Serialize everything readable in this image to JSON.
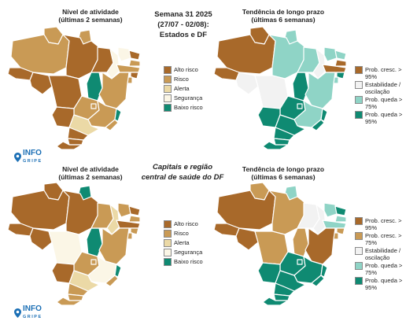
{
  "top": {
    "left_title": [
      "Nível de atividade",
      "(últimas 2 semanas)"
    ],
    "center_title": [
      "Semana 31 2025",
      "(27/07 - 02/08):",
      "Estados e DF"
    ],
    "right_title": [
      "Tendência de longo prazo",
      "(últimas 6 semanas)"
    ]
  },
  "bottom": {
    "left_title": [
      "Nível de atividade",
      "(últimas 2 semanas)"
    ],
    "center_title": [
      "Capitais e região",
      "central de saúde do DF"
    ],
    "right_title": [
      "Tendência de longo prazo",
      "(últimas 6 semanas)"
    ]
  },
  "legend_activity": [
    {
      "label": "Alto risco",
      "color": "#a8692a"
    },
    {
      "label": "Risco",
      "color": "#c99a55"
    },
    {
      "label": "Alerta",
      "color": "#ebd9a6"
    },
    {
      "label": "Segurança",
      "color": "#fbf6e6"
    },
    {
      "label": "Baixo risco",
      "color": "#0f8a72"
    }
  ],
  "legend_trend_top": [
    {
      "label": "Prob. cresc. > 95%",
      "color": "#a8692a"
    },
    {
      "label": "Estabilidade / oscilação",
      "color": "#f2f2f2"
    },
    {
      "label": "Prob. queda > 75%",
      "color": "#8fd4c6"
    },
    {
      "label": "Prob. queda > 95%",
      "color": "#0f8a72"
    }
  ],
  "legend_trend_bottom": [
    {
      "label": "Prob. cresc. > 95%",
      "color": "#a8692a"
    },
    {
      "label": "Prob. cresc. > 75%",
      "color": "#c99a55"
    },
    {
      "label": "Estabilidade / oscilação",
      "color": "#f2f2f2"
    },
    {
      "label": "Prob. queda > 75%",
      "color": "#8fd4c6"
    },
    {
      "label": "Prob. queda > 95%",
      "color": "#0f8a72"
    }
  ],
  "logo": {
    "text": "INFO",
    "sub": "GRIPE",
    "icon": "location-pin-icon"
  },
  "colors": {
    "alto": "#a8692a",
    "risco": "#c99a55",
    "alerta": "#ebd9a6",
    "seguranca": "#fbf6e6",
    "baixo": "#0f8a72",
    "queda75": "#8fd4c6",
    "estavel": "#f2f2f2"
  },
  "maps": {
    "top_activity": {
      "AC": "alto",
      "AM": "risco",
      "RR": "risco",
      "AP": "risco",
      "PA": "alto",
      "MA": "alto",
      "PI": "seguranca",
      "CE": "seguranca",
      "RN": "alto",
      "PB": "risco",
      "PE": "risco",
      "AL": "alto",
      "SE": "risco",
      "BA": "risco",
      "TO": "baixo",
      "RO": "alto",
      "MT": "alto",
      "GO": "risco",
      "DF": "risco",
      "MS": "alto",
      "MG": "risco",
      "ES": "baixo",
      "RJ": "risco",
      "SP": "alerta",
      "PR": "alto",
      "SC": "alto",
      "RS": "alto"
    },
    "top_trend": {
      "AC": "alto",
      "AM": "alto",
      "RR": "alto",
      "AP": "queda75",
      "PA": "queda75",
      "MA": "queda75",
      "PI": "estavel",
      "CE": "queda75",
      "RN": "queda75",
      "PB": "alto",
      "PE": "alto",
      "AL": "baixo",
      "SE": "queda75",
      "BA": "queda75",
      "TO": "baixo",
      "RO": "estavel",
      "MT": "estavel",
      "GO": "baixo",
      "DF": "baixo",
      "MS": "baixo",
      "MG": "queda75",
      "ES": "baixo",
      "RJ": "baixo",
      "SP": "baixo",
      "PR": "baixo",
      "SC": "baixo",
      "RS": "baixo"
    },
    "bottom_activity": {
      "AC": "alto",
      "AM": "alto",
      "RR": "alto",
      "AP": "baixo",
      "PA": "alto",
      "MA": "risco",
      "PI": "alerta",
      "CE": "risco",
      "RN": "alto",
      "PB": "risco",
      "PE": "alto",
      "AL": "risco",
      "SE": "risco",
      "BA": "risco",
      "TO": "baixo",
      "RO": "alto",
      "MT": "seguranca",
      "GO": "risco",
      "DF": "risco",
      "MS": "alto",
      "MG": "seguranca",
      "ES": "baixo",
      "RJ": "risco",
      "SP": "alerta",
      "PR": "risco",
      "SC": "risco",
      "RS": "risco"
    },
    "bottom_trend": {
      "AC": "alto",
      "AM": "alto",
      "RR": "risco",
      "AP": "queda75",
      "PA": "risco",
      "MA": "estavel",
      "PI": "estavel",
      "CE": "queda75",
      "RN": "baixo",
      "PB": "queda75",
      "PE": "queda75",
      "AL": "risco",
      "SE": "risco",
      "BA": "alto",
      "TO": "risco",
      "RO": "alto",
      "MT": "risco",
      "GO": "baixo",
      "DF": "baixo",
      "MS": "baixo",
      "MG": "baixo",
      "ES": "baixo",
      "RJ": "baixo",
      "SP": "baixo",
      "PR": "baixo",
      "SC": "baixo",
      "RS": "baixo"
    }
  }
}
